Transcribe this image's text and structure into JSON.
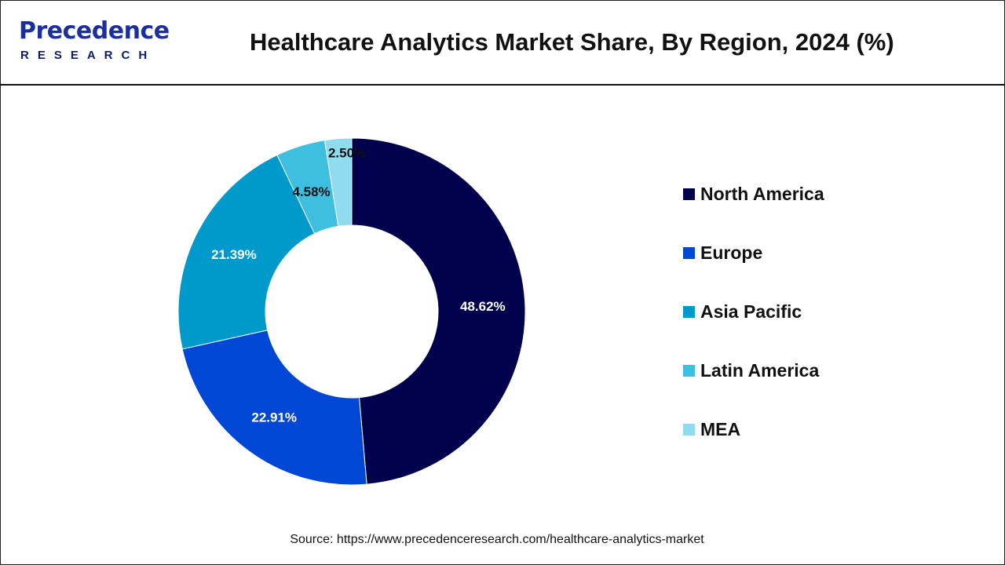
{
  "logo": {
    "main": "Precedence",
    "sub": "RESEARCH"
  },
  "header": {
    "title": "Healthcare Analytics Market Share, By Region, 2024 (%)"
  },
  "chart_data": {
    "type": "pie",
    "variant": "donut",
    "title": "Healthcare Analytics Market Share, By Region, 2024 (%)",
    "categories": [
      "North America",
      "Europe",
      "Asia Pacific",
      "Latin America",
      "MEA"
    ],
    "values": [
      48.62,
      22.91,
      21.39,
      4.58,
      2.5
    ],
    "data_labels": [
      "48.62%",
      "22.91%",
      "21.39%",
      "4.58%",
      "2.50%"
    ],
    "colors": [
      "#00004d",
      "#0047d6",
      "#0099cc",
      "#3fbfdf",
      "#8fdcef"
    ],
    "legend_position": "right"
  },
  "source": "Source: https://www.precedenceresearch.com/healthcare-analytics-market"
}
